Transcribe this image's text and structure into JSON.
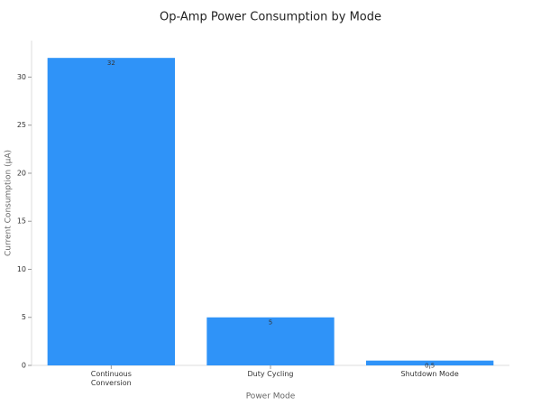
{
  "chart_data": {
    "type": "bar",
    "title": "Op-Amp Power Consumption by Mode",
    "x_label": "Power Mode",
    "y_label": "Current Consumption (µA)",
    "categories": [
      "Continuous Conversion",
      "Duty Cycling",
      "Shutdown Mode"
    ],
    "values": [
      32,
      5,
      0.5
    ],
    "color": "#2f93f8",
    "ylim": [
      0,
      33.8
    ],
    "yticks": [
      0,
      5,
      10,
      15,
      20,
      25,
      30
    ],
    "grid": false
  }
}
